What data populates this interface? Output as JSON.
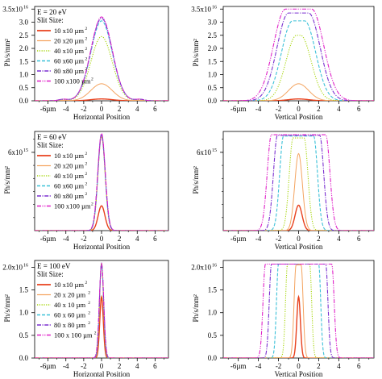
{
  "colors": {
    "10x10": "#e8401c",
    "20x20": "#f4a460",
    "40x10": "#a6d608",
    "60x60": "#3cc1d8",
    "80x80": "#7a2fd0",
    "100x100": "#e020c8"
  },
  "chart_data": [
    {
      "type": "line",
      "panel": "top-left",
      "legend_title": "E = 20 eV",
      "legend_subtitle": "Slit Size:",
      "xlabel": "Horizontal Position",
      "ylabel": "Ph/s/mm",
      "ylabel_sup": "2",
      "xlim": [
        -7.5,
        7.5
      ],
      "ylim": [
        0,
        3.6e+16
      ],
      "x_ticks": [
        -6,
        -4,
        -2,
        0,
        2,
        4,
        6
      ],
      "x_tick_labels": [
        "-6µm",
        "-4",
        "-2",
        "0",
        "2",
        "4",
        "6"
      ],
      "y_ticks": [
        0,
        5000000000000000.0,
        1e+16,
        1.5e+16,
        2e+16,
        2.5e+16,
        3e+16,
        3.5e+16
      ],
      "y_tick_labels": [
        "0.0",
        "0.5",
        "1.0",
        "1.5",
        "2.0",
        "2.5",
        "3.0",
        "3.5x10"
      ],
      "y_top_exp": "16",
      "shape": "gauss",
      "series": [
        {
          "name": "10 x10  µm",
          "sup": "2",
          "key": "10x10",
          "peak": 700000000000000.0,
          "sigma": 1.2,
          "top": 0
        },
        {
          "name": "20 x20  µm",
          "sup": "2",
          "key": "20x20",
          "peak": 6500000000000000.0,
          "sigma": 1.2,
          "top": 0
        },
        {
          "name": "40 x10  µm",
          "sup": "2",
          "key": "40x10",
          "peak": 2.45e+16,
          "sigma": 1.2,
          "top": 0
        },
        {
          "name": "60 x60  µm",
          "sup": "2",
          "key": "60x60",
          "peak": 3.05e+16,
          "sigma": 1.2,
          "top": 0
        },
        {
          "name": "80 x80  µm",
          "sup": "2",
          "key": "80x80",
          "peak": 3.15e+16,
          "sigma": 1.2,
          "top": 0
        },
        {
          "name": "100 x100  µm",
          "sup": "2",
          "key": "100x100",
          "peak": 3.2e+16,
          "sigma": 1.2,
          "top": 0
        }
      ]
    },
    {
      "type": "line",
      "panel": "top-right",
      "xlabel": "Vertical Position",
      "ylabel": "Ph/s/mm",
      "ylabel_sup": "2",
      "xlim": [
        -7.5,
        7.5
      ],
      "ylim": [
        0,
        3.6e+16
      ],
      "x_ticks": [
        -6,
        -4,
        -2,
        0,
        2,
        4,
        6
      ],
      "x_tick_labels": [
        "-6µm",
        "-4",
        "-2",
        "0",
        "2",
        "4",
        "6"
      ],
      "y_ticks": [
        0,
        5000000000000000.0,
        1e+16,
        1.5e+16,
        2e+16,
        2.5e+16,
        3e+16,
        3.5e+16
      ],
      "y_tick_labels": [
        "0.0",
        "0.5",
        "1.0",
        "1.5",
        "2.0",
        "2.5",
        "3.0",
        "3.5x10"
      ],
      "y_top_exp": "16",
      "shape": "flat",
      "series": [
        {
          "key": "10x10",
          "peak": 700000000000000.0,
          "sigma": 1.0,
          "top": 0
        },
        {
          "key": "20x20",
          "peak": 6500000000000000.0,
          "sigma": 1.0,
          "top": 0.0
        },
        {
          "key": "40x10",
          "peak": 2.5e+16,
          "sigma": 1.05,
          "top": 0.2
        },
        {
          "key": "60x60",
          "peak": 3.05e+16,
          "sigma": 1.1,
          "top": 0.6
        },
        {
          "key": "80x80",
          "peak": 3.35e+16,
          "sigma": 1.15,
          "top": 1.0
        },
        {
          "key": "100x100",
          "peak": 3.5e+16,
          "sigma": 1.2,
          "top": 1.3
        }
      ]
    },
    {
      "type": "line",
      "panel": "middle-left",
      "legend_title": "E = 60 eV",
      "legend_subtitle": "Slit Size:",
      "xlabel": "Horizontal Position",
      "ylabel": "Ph/s/mm",
      "ylabel_sup": "2",
      "xlim": [
        -7.5,
        7.5
      ],
      "ylim": [
        0,
        7600000000000000.0
      ],
      "x_ticks": [
        -6,
        -4,
        -2,
        0,
        2,
        4,
        6
      ],
      "x_tick_labels": [
        "-6µm",
        "-4",
        "-2",
        "0",
        "2",
        "4",
        "6"
      ],
      "y_ticks": [
        6000000000000000.0
      ],
      "y_tick_labels": [
        "6x10"
      ],
      "y_top_exp": "15",
      "y_minor": 1000000000000000.0,
      "shape": "gauss",
      "series": [
        {
          "name": "10 x10  µm",
          "sup": "2",
          "key": "10x10",
          "peak": 1900000000000000.0,
          "sigma": 0.38,
          "top": 0
        },
        {
          "name": "20 x20  µm",
          "sup": "2",
          "key": "20x20",
          "peak": 7200000000000000.0,
          "sigma": 0.4,
          "top": 0
        },
        {
          "name": "40 x10  µm",
          "sup": "2",
          "key": "40x10",
          "peak": 7300000000000000.0,
          "sigma": 0.4,
          "top": 0
        },
        {
          "name": "60 x60  µm",
          "sup": "2",
          "key": "60x60",
          "peak": 7300000000000000.0,
          "sigma": 0.4,
          "top": 0
        },
        {
          "name": "80 x80  µm",
          "sup": "2",
          "key": "80x80",
          "peak": 7400000000000000.0,
          "sigma": 0.41,
          "top": 0
        },
        {
          "name": "100 x100  µm",
          "sup": "2",
          "key": "100x100",
          "peak": 7450000000000000.0,
          "sigma": 0.42,
          "top": 0
        }
      ]
    },
    {
      "type": "line",
      "panel": "middle-right",
      "xlabel": "Vertical Position",
      "ylabel": "Ph/s/mm",
      "ylabel_sup": "2",
      "xlim": [
        -7.5,
        7.5
      ],
      "ylim": [
        0,
        7600000000000000.0
      ],
      "x_ticks": [
        -6,
        -4,
        -2,
        0,
        2,
        4,
        6
      ],
      "x_tick_labels": [
        "-6µm",
        "-4",
        "-2",
        "0",
        "2",
        "4",
        "6"
      ],
      "y_ticks": [
        6000000000000000.0
      ],
      "y_tick_labels": [
        "6x10"
      ],
      "y_top_exp": "15",
      "y_minor": 1000000000000000.0,
      "shape": "flat",
      "series": [
        {
          "key": "10x10",
          "peak": 1950000000000000.0,
          "sigma": 0.35,
          "top": 0
        },
        {
          "key": "20x20",
          "peak": 5900000000000000.0,
          "sigma": 0.38,
          "top": 0.0
        },
        {
          "key": "40x10",
          "peak": 7100000000000000.0,
          "sigma": 0.38,
          "top": 0.55
        },
        {
          "key": "60x60",
          "peak": 7250000000000000.0,
          "sigma": 0.38,
          "top": 1.5
        },
        {
          "key": "80x80",
          "peak": 7300000000000000.0,
          "sigma": 0.4,
          "top": 2.1
        },
        {
          "key": "100x100",
          "peak": 7350000000000000.0,
          "sigma": 0.42,
          "top": 2.7
        }
      ]
    },
    {
      "type": "line",
      "panel": "bottom-left",
      "legend_title": "E = 100 eV",
      "legend_subtitle": "Slit Size:",
      "xlabel": "Horizontal Position",
      "ylabel": "Ph/s/mm",
      "ylabel_sup": "2",
      "xlim": [
        -7.5,
        7.5
      ],
      "ylim": [
        0,
        2.15e+16
      ],
      "x_ticks": [
        -6,
        -4,
        -2,
        0,
        2,
        4,
        6
      ],
      "x_tick_labels": [
        "-6µm",
        "-4",
        "-2",
        "0",
        "2",
        "4",
        "6"
      ],
      "y_ticks": [
        0,
        5000000000000000.0,
        1e+16,
        1.5e+16,
        2e+16
      ],
      "y_tick_labels": [
        "0.0",
        "0.5",
        "1.0",
        "1.5",
        "2.0x10"
      ],
      "y_top_exp": "16",
      "shape": "gauss",
      "series": [
        {
          "name": "10 x10  µm",
          "sup": "2",
          "key": "10x10",
          "peak": 1.35e+16,
          "sigma": 0.2,
          "top": 0
        },
        {
          "name": "20 x 20  µm",
          "sup": "2",
          "key": "20x20",
          "peak": 2.1e+16,
          "sigma": 0.22,
          "top": 0
        },
        {
          "name": "40 x 10  µm",
          "sup": "2",
          "key": "40x10",
          "peak": 2.08e+16,
          "sigma": 0.22,
          "top": 0
        },
        {
          "name": "60 x 60  µm",
          "sup": "2",
          "key": "60x60",
          "peak": 2.08e+16,
          "sigma": 0.23,
          "top": 0
        },
        {
          "name": "80 x 80  µm",
          "sup": "2",
          "key": "80x80",
          "peak": 2.08e+16,
          "sigma": 0.24,
          "top": 0
        },
        {
          "name": "100 x 100  µm",
          "sup": "2",
          "key": "100x100",
          "peak": 2.08e+16,
          "sigma": 0.25,
          "top": 0
        }
      ]
    },
    {
      "type": "line",
      "panel": "bottom-right",
      "xlabel": "Vertical Position",
      "ylabel": "Ph/s/mm",
      "ylabel_sup": "2",
      "xlim": [
        -7.5,
        7.5
      ],
      "ylim": [
        0,
        2.15e+16
      ],
      "x_ticks": [
        -6,
        -4,
        -2,
        0,
        2,
        4,
        6
      ],
      "x_tick_labels": [
        "-6µm",
        "-4",
        "-2",
        "0",
        "2",
        "4",
        "6"
      ],
      "y_ticks": [
        0,
        5000000000000000.0,
        1e+16,
        1.5e+16,
        2e+16
      ],
      "y_tick_labels": [
        "0.0",
        "0.5",
        "1.0",
        "1.5",
        "2.0x10"
      ],
      "y_top_exp": "16",
      "shape": "flat",
      "series": [
        {
          "key": "10x10",
          "peak": 1.35e+16,
          "sigma": 0.18,
          "top": 0
        },
        {
          "key": "20x20",
          "peak": 2.05e+16,
          "sigma": 0.2,
          "top": 0.25
        },
        {
          "key": "40x10",
          "peak": 2.07e+16,
          "sigma": 0.2,
          "top": 1.1
        },
        {
          "key": "60x60",
          "peak": 2.07e+16,
          "sigma": 0.2,
          "top": 2.0
        },
        {
          "key": "80x80",
          "peak": 2.07e+16,
          "sigma": 0.22,
          "top": 2.7
        },
        {
          "key": "100x100",
          "peak": 2.07e+16,
          "sigma": 0.24,
          "top": 3.3
        }
      ]
    }
  ]
}
